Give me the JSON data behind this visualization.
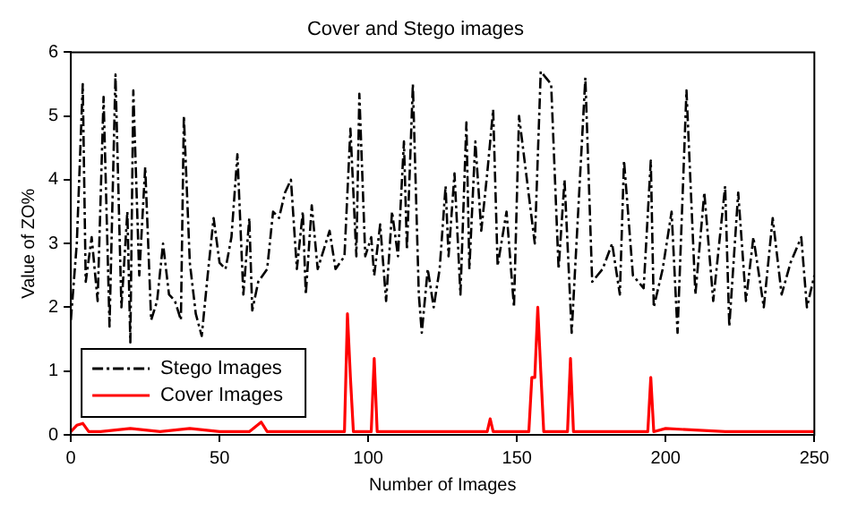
{
  "chart_data": {
    "type": "line",
    "title": "Cover and Stego images",
    "xlabel": "Number of Images",
    "ylabel": "Value of ZO%",
    "xlim": [
      0,
      250
    ],
    "xticks": [
      0,
      50,
      100,
      150,
      200,
      250
    ],
    "ylim": [
      0,
      6
    ],
    "yticks": [
      0,
      1,
      2,
      3,
      4,
      5,
      6
    ],
    "grid": false,
    "legend": "bottom left",
    "marker": "none",
    "series": [
      {
        "name": "Stego Images",
        "color": "#000000",
        "line_style": "dashed",
        "x": [
          0,
          2,
          4,
          5,
          7,
          9,
          11,
          13,
          15,
          17,
          19,
          20,
          21,
          23,
          25,
          27,
          29,
          31,
          33,
          35,
          37,
          38,
          40,
          42,
          44,
          46,
          48,
          50,
          52,
          54,
          56,
          58,
          60,
          61,
          63,
          66,
          68,
          70,
          72,
          74,
          76,
          78,
          79,
          81,
          83,
          85,
          87,
          89,
          92,
          94,
          96,
          97,
          99,
          101,
          102,
          104,
          106,
          108,
          110,
          112,
          113,
          115,
          117,
          118,
          120,
          122,
          124,
          126,
          127,
          129,
          131,
          133,
          134,
          136,
          138,
          140,
          142,
          143.5,
          146.5,
          149,
          150.7,
          156,
          158,
          161.5,
          164,
          166,
          168.4,
          173,
          175.3,
          178.8,
          182,
          184.6,
          186,
          189,
          192.6,
          195,
          196,
          199,
          202,
          204,
          207,
          210,
          213,
          216,
          220,
          221.4,
          224.4,
          227,
          229.5,
          233,
          236,
          239,
          242,
          245.6,
          247.5,
          250
        ],
        "values": [
          1.8,
          3.0,
          5.5,
          2.4,
          3.1,
          2.1,
          5.3,
          1.7,
          5.65,
          2.0,
          3.5,
          1.45,
          5.4,
          2.5,
          4.2,
          1.8,
          2.1,
          3.0,
          2.2,
          2.1,
          1.8,
          5.0,
          2.7,
          1.9,
          1.55,
          2.5,
          3.4,
          2.7,
          2.6,
          3.1,
          4.4,
          2.2,
          3.4,
          1.95,
          2.4,
          2.6,
          3.5,
          3.4,
          3.8,
          4.0,
          2.6,
          3.5,
          2.2,
          3.6,
          2.6,
          2.9,
          3.2,
          2.6,
          2.8,
          4.8,
          2.8,
          5.35,
          2.8,
          3.1,
          2.5,
          3.3,
          2.1,
          3.5,
          2.8,
          4.6,
          2.9,
          5.5,
          2.2,
          1.6,
          2.6,
          2.0,
          2.6,
          3.9,
          2.8,
          4.1,
          2.2,
          4.9,
          2.6,
          4.6,
          3.2,
          4.1,
          5.1,
          2.65,
          3.5,
          2.0,
          5.0,
          3.0,
          5.7,
          5.5,
          2.6,
          4.0,
          1.6,
          5.6,
          2.4,
          2.6,
          3.0,
          2.2,
          4.3,
          2.5,
          2.3,
          4.3,
          2.0,
          2.6,
          3.5,
          1.6,
          5.4,
          2.2,
          3.8,
          2.1,
          3.9,
          1.7,
          3.8,
          2.1,
          3.1,
          2.0,
          3.4,
          2.2,
          2.7,
          3.1,
          2.0,
          2.5
        ]
      },
      {
        "name": "Cover Images",
        "color": "#ff0000",
        "line_style": "solid",
        "x": [
          0,
          2,
          4,
          6,
          10,
          20,
          30,
          40,
          50,
          60,
          64,
          66,
          80,
          92,
          93,
          94,
          95,
          101,
          102,
          103,
          120,
          140,
          141,
          142,
          154,
          155,
          156,
          157,
          158,
          159,
          167,
          168,
          169,
          194,
          195,
          196,
          200,
          220,
          250
        ],
        "values": [
          0.05,
          0.15,
          0.18,
          0.05,
          0.05,
          0.1,
          0.05,
          0.1,
          0.05,
          0.05,
          0.2,
          0.05,
          0.05,
          0.05,
          1.9,
          0.9,
          0.05,
          0.05,
          1.2,
          0.05,
          0.05,
          0.05,
          0.25,
          0.05,
          0.05,
          0.9,
          0.9,
          2.0,
          1.0,
          0.05,
          0.05,
          1.2,
          0.05,
          0.05,
          0.9,
          0.05,
          0.1,
          0.05,
          0.05
        ]
      }
    ]
  }
}
